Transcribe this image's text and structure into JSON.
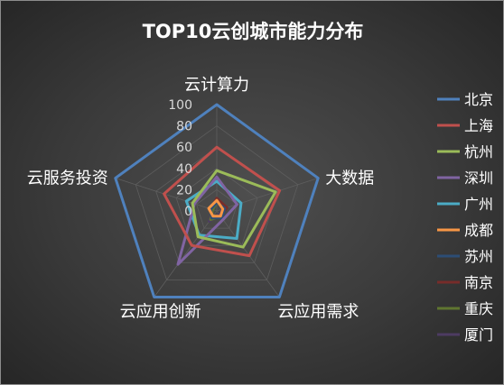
{
  "chart_data": {
    "type": "radar",
    "title": "TOP10云创城市能力分布",
    "axes": [
      "云计算力",
      "大数据",
      "云应用需求",
      "云应用创新",
      "云服务投资"
    ],
    "rlim": [
      0,
      100
    ],
    "ticks": [
      "0",
      "20",
      "40",
      "60",
      "80",
      "100"
    ],
    "legend_position": "right",
    "series": [
      {
        "name": "北京",
        "color": "#4f81bd",
        "values": [
          100,
          100,
          100,
          100,
          100
        ]
      },
      {
        "name": "上海",
        "color": "#c0504d",
        "values": [
          60,
          62,
          52,
          40,
          52
        ]
      },
      {
        "name": "杭州",
        "color": "#9bbb59",
        "values": [
          38,
          58,
          42,
          30,
          24
        ]
      },
      {
        "name": "深圳",
        "color": "#8064a2",
        "values": [
          32,
          20,
          10,
          62,
          22
        ]
      },
      {
        "name": "广州",
        "color": "#4bacc6",
        "values": [
          28,
          24,
          32,
          28,
          30
        ]
      },
      {
        "name": "成都",
        "color": "#f79646",
        "values": [
          10,
          6,
          6,
          6,
          8
        ]
      },
      {
        "name": "苏州",
        "color": "#2c4d75",
        "values": [
          8,
          8,
          8,
          8,
          6
        ]
      },
      {
        "name": "南京",
        "color": "#772c2a",
        "values": [
          12,
          10,
          6,
          8,
          6
        ]
      },
      {
        "name": "重庆",
        "color": "#5f7530",
        "values": [
          8,
          8,
          6,
          10,
          4
        ]
      },
      {
        "name": "厦门",
        "color": "#4d3b62",
        "values": [
          10,
          6,
          4,
          12,
          4
        ]
      }
    ]
  }
}
